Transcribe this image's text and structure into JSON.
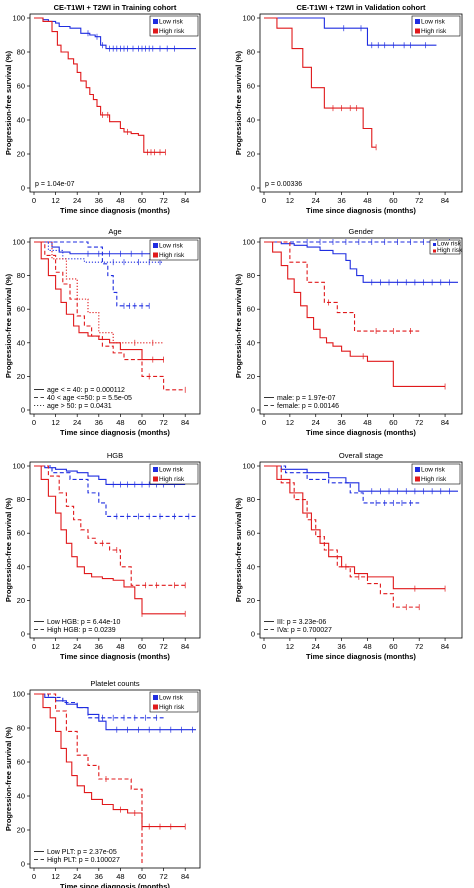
{
  "colors": {
    "low": "#1f2de0",
    "high": "#e0191b",
    "axis": "#000000"
  },
  "common": {
    "xlabel": "Time since diagnosis (months)",
    "ylabel": "Progression-free survival (%)",
    "xticks": [
      0,
      12,
      24,
      36,
      48,
      60,
      72,
      84
    ],
    "yticks": [
      0,
      20,
      40,
      60,
      80,
      100
    ],
    "legend": [
      "Low risk",
      "High risk"
    ]
  },
  "chart_data": [
    {
      "type": "line",
      "title": "CE-T1WI + T2WI in  Training cohort",
      "xlim": [
        0,
        90
      ],
      "ylim": [
        0,
        100
      ],
      "pvalue_labels": [
        "p = 1.04e-07"
      ],
      "series": [
        {
          "name": "Low risk",
          "group": "low",
          "style": "solid",
          "x": [
            0,
            5,
            8,
            12,
            14,
            20,
            26,
            31,
            34,
            37,
            40,
            90
          ],
          "y": [
            100,
            99,
            98,
            97,
            95,
            94,
            91,
            90,
            89,
            84,
            82,
            82
          ],
          "censor": [
            30,
            35,
            38,
            42,
            44,
            46,
            48,
            50,
            52,
            55,
            58,
            60,
            62,
            64,
            66,
            70,
            74,
            78
          ]
        },
        {
          "name": "High risk",
          "group": "high",
          "style": "solid",
          "x": [
            0,
            5,
            10,
            13,
            15,
            19,
            22,
            24,
            26,
            29,
            31,
            33,
            35,
            37,
            42,
            48,
            50,
            54,
            58,
            61,
            73
          ],
          "y": [
            100,
            98,
            92,
            84,
            80,
            76,
            73,
            68,
            63,
            59,
            55,
            52,
            48,
            43,
            39,
            35,
            33,
            32,
            31,
            21,
            21
          ],
          "censor": [
            38,
            41,
            52,
            63,
            65,
            67,
            70,
            73
          ]
        }
      ]
    },
    {
      "type": "line",
      "title": "CE-T1WI + T2WI in Validation cohort",
      "xlim": [
        0,
        90
      ],
      "ylim": [
        0,
        100
      ],
      "pvalue_labels": [
        "p = 0.00336"
      ],
      "series": [
        {
          "name": "Low risk",
          "group": "low",
          "style": "solid",
          "x": [
            0,
            28,
            48,
            80
          ],
          "y": [
            100,
            94,
            84,
            84
          ],
          "censor": [
            37,
            45,
            50,
            53,
            56,
            60,
            65,
            68,
            75
          ]
        },
        {
          "name": "High risk",
          "group": "high",
          "style": "solid",
          "x": [
            0,
            6,
            13,
            18,
            22,
            28,
            46,
            50,
            52
          ],
          "y": [
            100,
            94,
            82,
            71,
            59,
            47,
            35,
            24,
            24
          ],
          "censor": [
            32,
            36,
            40,
            43,
            52
          ]
        }
      ]
    },
    {
      "type": "line",
      "title": "Age",
      "xlim": [
        0,
        90
      ],
      "ylim": [
        0,
        100
      ],
      "pvalue_labels": [
        "age < = 40: p = 0.000112",
        "40 < age <=50: p = 5.5e-05",
        "age > 50: p = 0.0431"
      ],
      "series": [
        {
          "name": "age < = 40",
          "group": "low",
          "style": "solid",
          "x": [
            0,
            10,
            14,
            20,
            90
          ],
          "y": [
            100,
            97,
            94,
            93,
            93
          ],
          "censor": [
            30,
            36,
            42,
            48,
            54,
            60,
            66,
            72,
            78,
            84
          ]
        },
        {
          "name": "40 < age <=50",
          "group": "low",
          "style": "dashed",
          "x": [
            0,
            30,
            38,
            41,
            44,
            46,
            64
          ],
          "y": [
            100,
            97,
            87,
            80,
            70,
            62,
            62
          ],
          "censor": [
            50,
            53,
            56,
            60,
            64
          ]
        },
        {
          "name": "age > 50",
          "group": "low",
          "style": "dotted",
          "x": [
            0,
            8,
            16,
            28,
            36,
            72
          ],
          "y": [
            100,
            95,
            90,
            88,
            88,
            88
          ],
          "censor": [
            44,
            50,
            58,
            64,
            70
          ]
        },
        {
          "name": "age < = 40",
          "group": "high",
          "style": "solid",
          "x": [
            0,
            4,
            8,
            12,
            15,
            18,
            22,
            25,
            30,
            36,
            42,
            48,
            60,
            72
          ],
          "y": [
            100,
            90,
            80,
            72,
            64,
            57,
            50,
            46,
            44,
            42,
            40,
            36,
            30,
            30
          ],
          "censor": [
            66,
            72
          ]
        },
        {
          "name": "40 < age <=50",
          "group": "high",
          "style": "dashed",
          "x": [
            0,
            6,
            12,
            16,
            20,
            24,
            28,
            32,
            38,
            44,
            50,
            60,
            72,
            84
          ],
          "y": [
            100,
            92,
            82,
            75,
            66,
            56,
            50,
            44,
            38,
            34,
            30,
            20,
            12,
            12
          ],
          "censor": [
            64,
            84
          ]
        },
        {
          "name": "age > 50",
          "group": "high",
          "style": "dotted",
          "x": [
            0,
            10,
            18,
            24,
            30,
            36,
            44,
            72
          ],
          "y": [
            100,
            90,
            78,
            66,
            58,
            46,
            40,
            40
          ],
          "censor": [
            56,
            66
          ]
        }
      ]
    },
    {
      "type": "line",
      "title": "Gender",
      "xlim": [
        0,
        90
      ],
      "ylim": [
        0,
        100
      ],
      "pvalue_labels": [
        "male: p = 1.97e-07",
        "female: p = 0.00146"
      ],
      "series": [
        {
          "name": "male",
          "group": "low",
          "style": "solid",
          "x": [
            0,
            8,
            14,
            20,
            26,
            32,
            38,
            40,
            43,
            46,
            90
          ],
          "y": [
            100,
            99,
            98,
            97,
            95,
            93,
            89,
            84,
            80,
            76,
            76
          ],
          "censor": [
            50,
            54,
            58,
            62,
            66,
            70,
            74,
            78,
            82,
            86
          ]
        },
        {
          "name": "female",
          "group": "low",
          "style": "dashed",
          "x": [
            0,
            90
          ],
          "y": [
            100,
            100
          ],
          "censor": [
            20,
            26,
            32,
            38,
            44,
            50,
            56,
            62,
            68,
            74,
            80,
            86
          ]
        },
        {
          "name": "male",
          "group": "high",
          "style": "solid",
          "x": [
            0,
            4,
            8,
            11,
            14,
            17,
            20,
            23,
            26,
            29,
            32,
            36,
            40,
            48,
            54,
            60,
            72,
            84
          ],
          "y": [
            100,
            94,
            86,
            78,
            70,
            62,
            55,
            48,
            43,
            40,
            38,
            35,
            32,
            29,
            29,
            14,
            14,
            14
          ],
          "censor": [
            46,
            84
          ]
        },
        {
          "name": "female",
          "group": "high",
          "style": "dashed",
          "x": [
            0,
            12,
            20,
            28,
            34,
            42,
            72
          ],
          "y": [
            100,
            88,
            76,
            64,
            58,
            47,
            47
          ],
          "censor": [
            30,
            52,
            60,
            68
          ]
        }
      ]
    },
    {
      "type": "line",
      "title": "HGB",
      "xlim": [
        0,
        90
      ],
      "ylim": [
        0,
        100
      ],
      "pvalue_labels": [
        "Low HGB: p = 6.44e-10",
        "High HGB: p = 0.0239"
      ],
      "series": [
        {
          "name": "Low HGB",
          "group": "low",
          "style": "solid",
          "x": [
            0,
            6,
            12,
            18,
            24,
            30,
            36,
            40,
            84
          ],
          "y": [
            100,
            99,
            98,
            97,
            96,
            94,
            92,
            89,
            89
          ],
          "censor": [
            44,
            48,
            52,
            56,
            60,
            64,
            68,
            72,
            78
          ]
        },
        {
          "name": "High HGB",
          "group": "low",
          "style": "dashed",
          "x": [
            0,
            10,
            20,
            30,
            36,
            40,
            90
          ],
          "y": [
            100,
            96,
            92,
            84,
            78,
            70,
            70
          ],
          "censor": [
            46,
            52,
            58,
            64,
            70,
            78,
            86
          ]
        },
        {
          "name": "Low HGB",
          "group": "high",
          "style": "solid",
          "x": [
            0,
            4,
            8,
            12,
            15,
            18,
            21,
            24,
            28,
            32,
            38,
            44,
            50,
            56,
            60,
            84
          ],
          "y": [
            100,
            92,
            82,
            72,
            62,
            54,
            46,
            40,
            36,
            34,
            33,
            32,
            28,
            21,
            12,
            12
          ],
          "censor": [
            60,
            84
          ]
        },
        {
          "name": "High HGB",
          "group": "high",
          "style": "dashed",
          "x": [
            0,
            8,
            14,
            18,
            22,
            26,
            30,
            34,
            42,
            48,
            54,
            84
          ],
          "y": [
            100,
            94,
            84,
            76,
            68,
            62,
            57,
            54,
            50,
            40,
            29,
            29
          ],
          "censor": [
            38,
            46,
            62,
            68,
            78,
            84
          ]
        }
      ]
    },
    {
      "type": "line",
      "title": "Overall stage",
      "xlim": [
        0,
        90
      ],
      "ylim": [
        0,
        100
      ],
      "pvalue_labels": [
        "III: p = 3.23e-06",
        "IVa: p = 0.700027"
      ],
      "series": [
        {
          "name": "III",
          "group": "low",
          "style": "solid",
          "x": [
            0,
            8,
            20,
            30,
            38,
            44,
            90
          ],
          "y": [
            100,
            98,
            96,
            93,
            90,
            85,
            85
          ],
          "censor": [
            50,
            54,
            58,
            62,
            66,
            70,
            74,
            78,
            82,
            86
          ]
        },
        {
          "name": "IVa",
          "group": "low",
          "style": "dashed",
          "x": [
            0,
            10,
            20,
            30,
            40,
            46,
            72
          ],
          "y": [
            100,
            96,
            92,
            90,
            84,
            78,
            78
          ],
          "censor": [
            52,
            56,
            60,
            64,
            68
          ]
        },
        {
          "name": "III",
          "group": "high",
          "style": "solid",
          "x": [
            0,
            6,
            12,
            18,
            22,
            26,
            30,
            36,
            42,
            48,
            60,
            84
          ],
          "y": [
            100,
            92,
            84,
            72,
            62,
            54,
            46,
            40,
            36,
            34,
            27,
            27
          ],
          "censor": [
            70,
            84
          ]
        },
        {
          "name": "IVa",
          "group": "high",
          "style": "dashed",
          "x": [
            0,
            8,
            14,
            20,
            24,
            28,
            34,
            40,
            48,
            54,
            60,
            72
          ],
          "y": [
            100,
            90,
            80,
            68,
            58,
            50,
            40,
            34,
            30,
            24,
            16,
            16
          ],
          "censor": [
            38,
            44,
            66,
            72
          ]
        }
      ]
    },
    {
      "type": "line",
      "title": "Platelet counts",
      "xlim": [
        0,
        90
      ],
      "ylim": [
        0,
        100
      ],
      "pvalue_labels": [
        "Low PLT: p = 2.37e-05",
        "High PLT: p = 0.100027"
      ],
      "series": [
        {
          "name": "Low PLT",
          "group": "low",
          "style": "solid",
          "x": [
            0,
            6,
            12,
            18,
            24,
            30,
            36,
            40,
            90
          ],
          "y": [
            100,
            98,
            96,
            94,
            92,
            88,
            84,
            79,
            79
          ],
          "censor": [
            46,
            52,
            58,
            64,
            70,
            76,
            82,
            88
          ]
        },
        {
          "name": "High PLT",
          "group": "low",
          "style": "dashed",
          "x": [
            0,
            8,
            16,
            24,
            30,
            72
          ],
          "y": [
            100,
            98,
            95,
            92,
            86,
            86
          ],
          "censor": [
            38,
            44,
            50,
            56,
            62,
            68
          ]
        },
        {
          "name": "Low PLT",
          "group": "high",
          "style": "solid",
          "x": [
            0,
            5,
            9,
            12,
            15,
            18,
            21,
            24,
            28,
            32,
            38,
            44,
            52,
            60,
            84
          ],
          "y": [
            100,
            92,
            86,
            78,
            68,
            60,
            52,
            46,
            42,
            38,
            35,
            32,
            30,
            22,
            22
          ],
          "censor": [
            48,
            56,
            64,
            70,
            76,
            84
          ]
        },
        {
          "name": "High PLT",
          "group": "high",
          "style": "dashed",
          "x": [
            0,
            12,
            18,
            24,
            30,
            36,
            48,
            54,
            60
          ],
          "y": [
            100,
            90,
            78,
            64,
            58,
            50,
            50,
            44,
            0
          ],
          "censor": [
            40
          ]
        }
      ]
    }
  ]
}
